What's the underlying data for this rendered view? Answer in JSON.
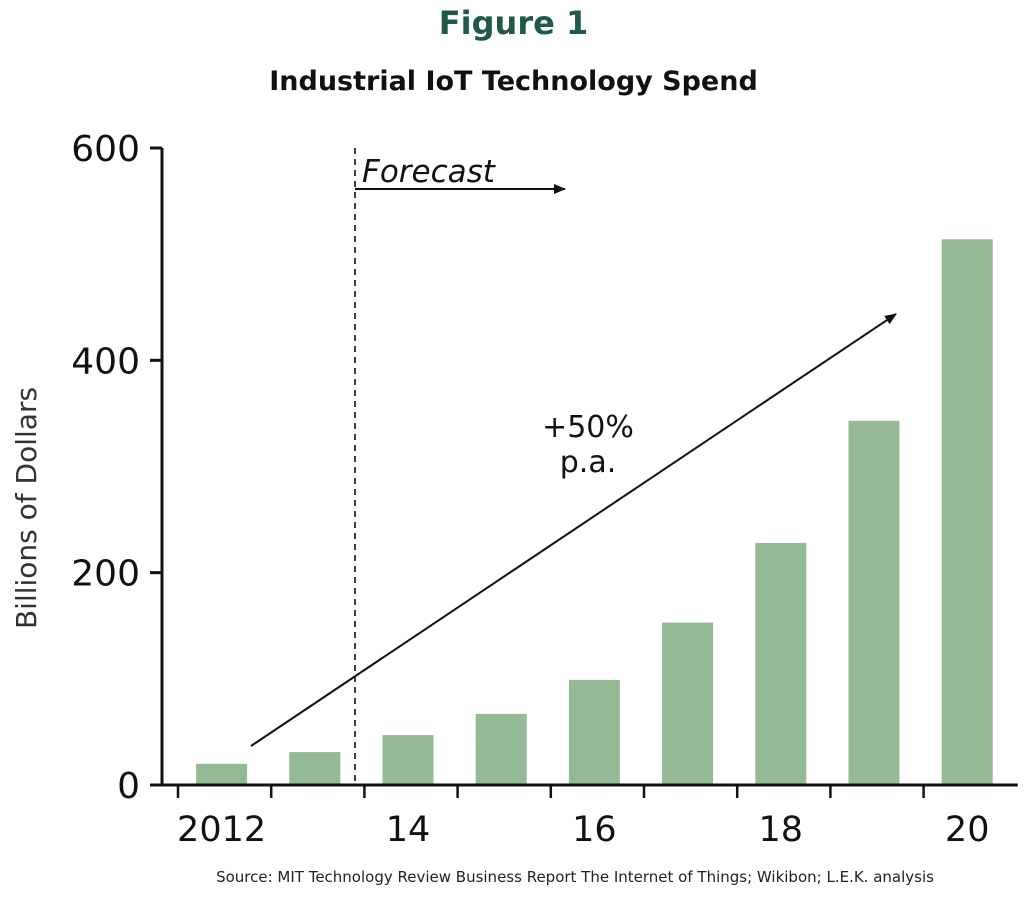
{
  "figure_label": "Figure 1",
  "source": "Source: MIT Technology Review Business Report The Internet of Things; Wikibon; L.E.K. analysis",
  "colors": {
    "bar": "#93ba94",
    "title": "#1f5a44",
    "axis": "#111111"
  },
  "annotations": {
    "forecast": "Forecast",
    "growth_line1": "+50%",
    "growth_line2": "p.a."
  },
  "chart_data": {
    "type": "bar",
    "title": "Industrial IoT Technology Spend",
    "xlabel": "",
    "ylabel": "Billions of Dollars",
    "ylim": [
      0,
      600
    ],
    "yticks": [
      0,
      200,
      400,
      600
    ],
    "categories": [
      "2012",
      "2013",
      "2014",
      "2015",
      "2016",
      "2017",
      "2018",
      "2019",
      "2020"
    ],
    "x_tick_labels": [
      "2012",
      "",
      "14",
      "",
      "16",
      "",
      "18",
      "",
      "20"
    ],
    "values": [
      20,
      31,
      47,
      67,
      99,
      153,
      228,
      343,
      514
    ],
    "forecast_start_after": "2013",
    "grid": false,
    "legend": "none"
  }
}
